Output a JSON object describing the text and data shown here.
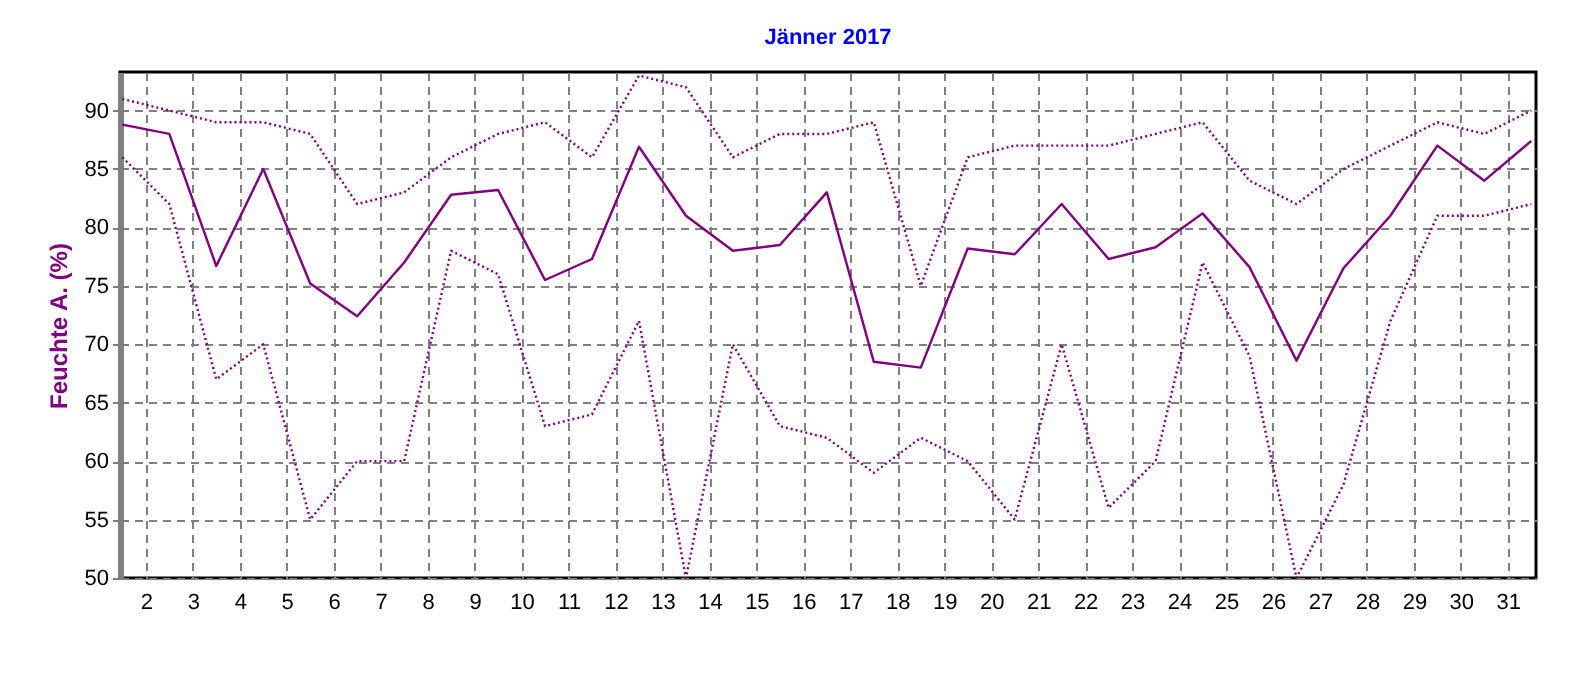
{
  "chart_data": {
    "type": "line",
    "title": "Jänner 2017",
    "ylabel": "Feuchte A.  (%)",
    "x": [
      1.5,
      2.5,
      3.5,
      4.5,
      5.5,
      6.5,
      7.5,
      8.5,
      9.5,
      10.5,
      11.5,
      12.5,
      13.5,
      14.5,
      15.5,
      16.5,
      17.5,
      18.5,
      19.5,
      20.5,
      21.5,
      22.5,
      23.5,
      24.5,
      25.5,
      26.5,
      27.5,
      28.5,
      29.5,
      30.5,
      31.5
    ],
    "series": [
      {
        "color": "#800080",
        "line_style": "dotted",
        "values": [
          91,
          90,
          89,
          89,
          88,
          82,
          83,
          86,
          88,
          89,
          86,
          93,
          92,
          86,
          88,
          88,
          89,
          75,
          86,
          87,
          87,
          87,
          88,
          89,
          84,
          82,
          85,
          87,
          89,
          88,
          90
        ]
      },
      {
        "color": "#800080",
        "line_style": "solid",
        "values": [
          88.8,
          88,
          76.7,
          85,
          75.2,
          72.4,
          77,
          82.8,
          83.2,
          75.5,
          77.3,
          86.9,
          81,
          78,
          78.5,
          83,
          68.5,
          68,
          78.2,
          77.7,
          82,
          77.3,
          78.3,
          81.2,
          76.6,
          68.6,
          76.5,
          81,
          87,
          84,
          87.4
        ]
      },
      {
        "color": "#800080",
        "line_style": "dotted",
        "values": [
          86,
          82,
          67,
          70,
          55,
          60,
          60,
          78,
          76,
          63,
          64,
          72,
          50,
          70,
          63,
          62,
          59,
          62,
          60,
          55,
          70,
          56,
          60,
          77,
          69,
          50,
          58,
          72,
          81,
          81,
          82
        ]
      }
    ],
    "xlim": [
      1.45,
      31.6
    ],
    "xticks": [
      2,
      3,
      4,
      5,
      6,
      7,
      8,
      9,
      10,
      11,
      12,
      13,
      14,
      15,
      16,
      17,
      18,
      19,
      20,
      21,
      22,
      23,
      24,
      25,
      26,
      27,
      28,
      29,
      30,
      31
    ],
    "ylim": [
      50,
      93.3
    ],
    "yticks": [
      50,
      55,
      60,
      65,
      70,
      75,
      80,
      85,
      90
    ],
    "grid": true,
    "marker": "none"
  }
}
